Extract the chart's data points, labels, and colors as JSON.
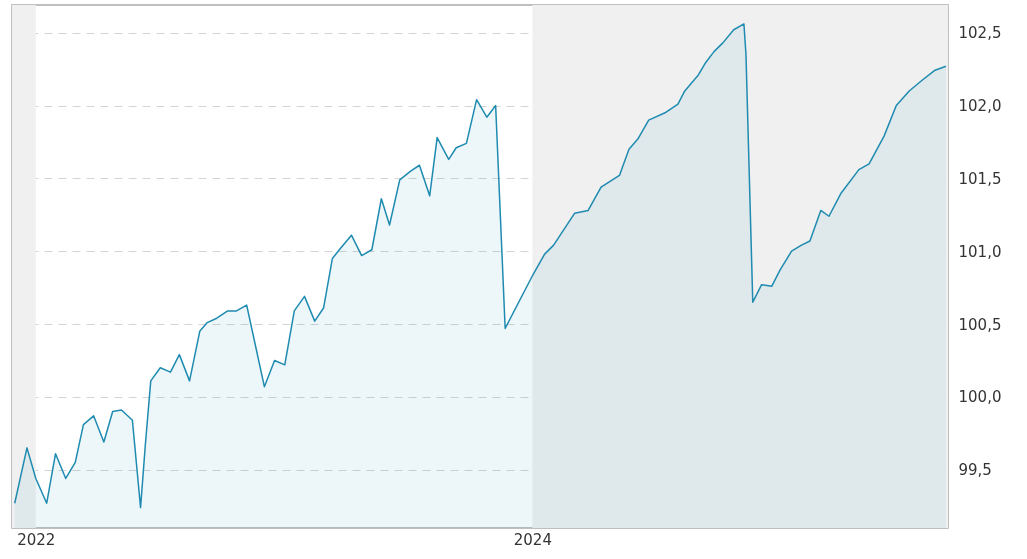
{
  "chart_data": {
    "type": "area",
    "x": [
      "2021-12-01",
      "2021-12-19",
      "2022-01-01",
      "2022-01-17",
      "2022-01-30",
      "2022-02-14",
      "2022-02-28",
      "2022-03-12",
      "2022-03-27",
      "2022-04-11",
      "2022-04-24",
      "2022-05-07",
      "2022-05-23",
      "2022-06-04",
      "2022-06-11",
      "2022-06-19",
      "2022-07-03",
      "2022-07-18",
      "2022-07-31",
      "2022-08-15",
      "2022-08-30",
      "2022-09-10",
      "2022-09-24",
      "2022-10-10",
      "2022-10-23",
      "2022-11-07",
      "2022-12-03",
      "2022-12-18",
      "2023-01-02",
      "2023-01-16",
      "2023-01-31",
      "2023-02-15",
      "2023-02-28",
      "2023-03-13",
      "2023-03-25",
      "2023-04-10",
      "2023-04-25",
      "2023-05-10",
      "2023-05-24",
      "2023-06-05",
      "2023-06-20",
      "2023-07-06",
      "2023-07-19",
      "2023-08-03",
      "2023-08-14",
      "2023-08-31",
      "2023-09-11",
      "2023-09-26",
      "2023-10-11",
      "2023-10-26",
      "2023-11-08",
      "2023-11-22",
      "2024-01-02",
      "2024-01-19",
      "2024-02-01",
      "2024-03-03",
      "2024-03-23",
      "2024-04-11",
      "2024-05-08",
      "2024-05-22",
      "2024-06-04",
      "2024-06-20",
      "2024-07-14",
      "2024-08-02",
      "2024-08-12",
      "2024-09-01",
      "2024-09-11",
      "2024-09-24",
      "2024-10-07",
      "2024-10-23",
      "2024-11-07",
      "2024-11-10",
      "2024-11-20",
      "2024-12-03",
      "2024-12-18",
      "2024-12-30",
      "2025-01-16",
      "2025-01-30",
      "2025-02-12",
      "2025-02-28",
      "2025-03-12",
      "2025-03-30",
      "2025-04-25",
      "2025-05-10",
      "2025-06-01",
      "2025-06-19",
      "2025-07-08",
      "2025-07-26",
      "2025-08-14",
      "2025-08-31"
    ],
    "series": [
      {
        "color": "#1f8bb0",
        "values": [
          99.27,
          99.65,
          99.44,
          99.27,
          99.61,
          99.44,
          99.55,
          99.81,
          99.87,
          99.69,
          99.9,
          99.91,
          99.84,
          99.24,
          99.67,
          100.11,
          100.2,
          100.17,
          100.29,
          100.11,
          100.45,
          100.51,
          100.54,
          100.59,
          100.59,
          100.63,
          100.07,
          100.25,
          100.22,
          100.59,
          100.69,
          100.52,
          100.61,
          100.95,
          101.02,
          101.11,
          100.97,
          101.01,
          101.36,
          101.18,
          101.49,
          101.55,
          101.59,
          101.38,
          101.78,
          101.63,
          101.71,
          101.74,
          102.04,
          101.92,
          102.0,
          100.47,
          100.84,
          100.98,
          101.04,
          101.26,
          101.28,
          101.44,
          101.52,
          101.7,
          101.77,
          101.9,
          101.95,
          102.01,
          102.1,
          102.21,
          102.29,
          102.37,
          102.43,
          102.52,
          102.56,
          102.35,
          100.65,
          100.77,
          100.76,
          100.87,
          101.0,
          101.04,
          101.07,
          101.28,
          101.24,
          101.4,
          101.56,
          101.6,
          101.79,
          102.0,
          102.1,
          102.17,
          102.24,
          102.27
        ]
      }
    ],
    "xlim": [
      "2021-11-27",
      "2025-09-03"
    ],
    "xticks": [
      {
        "value": "2022-01-01",
        "label": "2022"
      },
      {
        "value": "2024-01-01",
        "label": "2024"
      }
    ],
    "ylim": [
      99.1,
      102.69
    ],
    "yticks": [
      {
        "value": 99.5,
        "label": "99,5"
      },
      {
        "value": 100,
        "label": "100,0"
      },
      {
        "value": 100.5,
        "label": "100,5"
      },
      {
        "value": 101,
        "label": "101,0"
      },
      {
        "value": 101.5,
        "label": "101,5"
      },
      {
        "value": 102,
        "label": "102,0"
      },
      {
        "value": 102.5,
        "label": "102,5"
      }
    ],
    "bands": [
      {
        "axis": "x",
        "from": "2021-11-27",
        "to": "2022-01-01",
        "color": "#f0f0f0"
      },
      {
        "axis": "x",
        "from": "2024-01-01",
        "to": "2025-09-03",
        "color": "#f0f0f0"
      }
    ],
    "grid": "y"
  }
}
